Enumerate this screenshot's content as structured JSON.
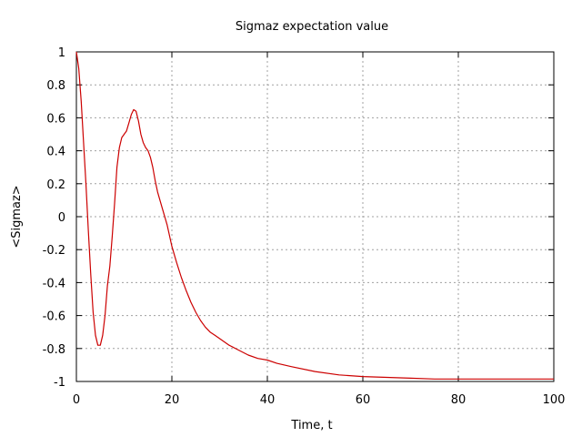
{
  "chart_data": {
    "type": "line",
    "title": "Sigmaz expectation value",
    "xlabel": "Time, t",
    "ylabel": "<Sigmaz>",
    "xlim": [
      0,
      100
    ],
    "ylim": [
      -1,
      1
    ],
    "x_ticks": [
      0,
      20,
      40,
      60,
      80,
      100
    ],
    "y_ticks": [
      -1,
      -0.8,
      -0.6,
      -0.4,
      -0.2,
      0,
      0.2,
      0.4,
      0.6,
      0.8,
      1
    ],
    "x_tick_labels": [
      "0",
      "20",
      "40",
      "60",
      "80",
      "100"
    ],
    "y_tick_labels": [
      "-1",
      "-0.8",
      "-0.6",
      "-0.4",
      "-0.2",
      "0",
      "0.2",
      "0.4",
      "0.6",
      "0.8",
      "1"
    ],
    "grid": true,
    "series": [
      {
        "color": "#cc0000",
        "x": [
          0,
          0.5,
          1,
          1.5,
          2,
          2.5,
          3,
          3.5,
          4,
          4.5,
          5,
          5.5,
          6,
          6.5,
          7,
          7.5,
          8,
          8.5,
          9,
          9.5,
          10,
          10.5,
          11,
          11.5,
          12,
          12.5,
          13,
          13.5,
          14,
          14.5,
          15,
          15.5,
          16,
          16.5,
          17,
          18,
          19,
          20,
          21,
          22,
          23,
          24,
          25,
          26,
          27,
          28,
          29,
          30,
          32,
          34,
          36,
          38,
          40,
          42,
          45,
          50,
          55,
          60,
          65,
          70,
          75,
          80,
          85,
          90,
          95,
          100
        ],
        "y": [
          1.0,
          0.9,
          0.7,
          0.45,
          0.2,
          -0.08,
          -0.35,
          -0.58,
          -0.72,
          -0.78,
          -0.78,
          -0.72,
          -0.6,
          -0.42,
          -0.3,
          -0.12,
          0.08,
          0.3,
          0.42,
          0.48,
          0.5,
          0.52,
          0.57,
          0.62,
          0.65,
          0.64,
          0.58,
          0.5,
          0.45,
          0.42,
          0.4,
          0.36,
          0.3,
          0.22,
          0.15,
          0.05,
          -0.05,
          -0.18,
          -0.28,
          -0.37,
          -0.45,
          -0.52,
          -0.58,
          -0.63,
          -0.67,
          -0.7,
          -0.72,
          -0.74,
          -0.78,
          -0.81,
          -0.84,
          -0.86,
          -0.87,
          -0.89,
          -0.91,
          -0.94,
          -0.96,
          -0.97,
          -0.975,
          -0.98,
          -0.985,
          -0.985,
          -0.985,
          -0.985,
          -0.985,
          -0.985
        ]
      }
    ]
  }
}
